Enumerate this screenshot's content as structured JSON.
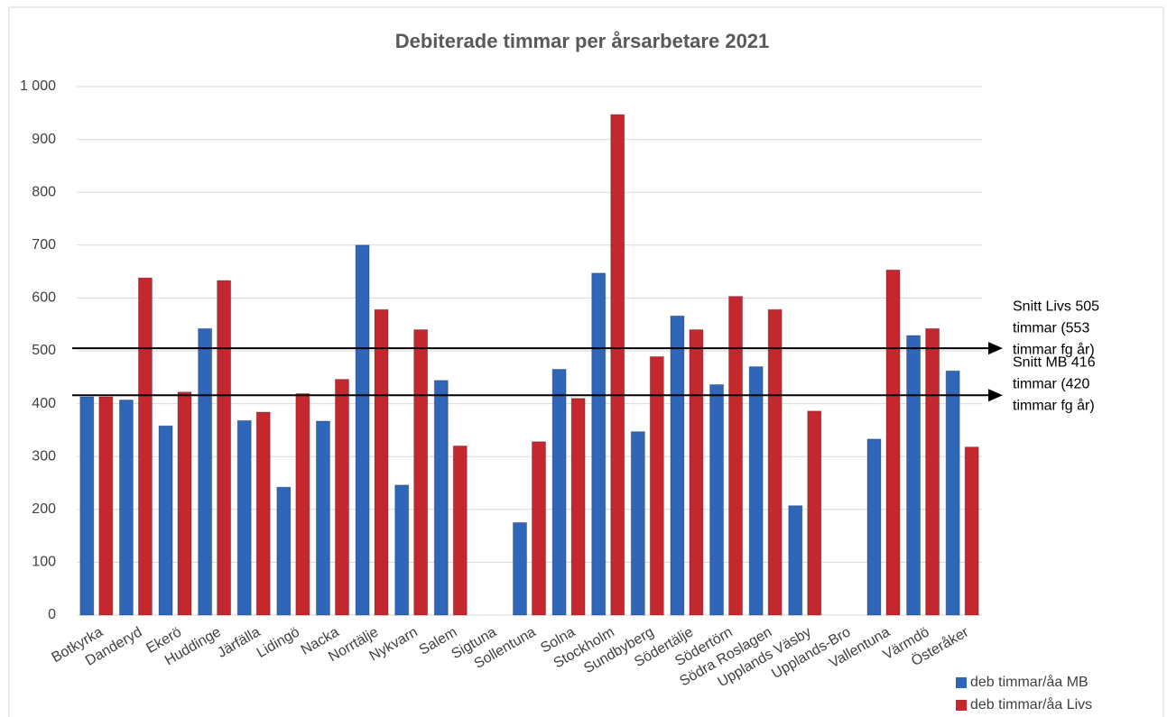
{
  "chart_data": {
    "type": "bar",
    "title": "Debiterade timmar per årsarbetare 2021",
    "categories": [
      "Botkyrka",
      "Danderyd",
      "Ekerö",
      "Huddinge",
      "Järfälla",
      "Lidingö",
      "Nacka",
      "Norrtälje",
      "Nykvarn",
      "Salem",
      "Sigtuna",
      "Sollentuna",
      "Solna",
      "Stockholm",
      "Sundbyberg",
      "Södertälje",
      "Södertörn",
      "Södra Roslagen",
      "Upplands Väsby",
      "Upplands-Bro",
      "Vallentuna",
      "Värmdö",
      "Österåker"
    ],
    "series": [
      {
        "name": "deb timmar/åa MB",
        "color": "#2f66b8",
        "values": [
          413,
          407,
          358,
          542,
          368,
          242,
          367,
          700,
          246,
          444,
          null,
          175,
          465,
          647,
          347,
          566,
          436,
          470,
          207,
          null,
          333,
          529,
          462
        ]
      },
      {
        "name": "deb timmar/åa Livs",
        "color": "#c4282e",
        "values": [
          413,
          638,
          422,
          633,
          384,
          419,
          446,
          578,
          540,
          320,
          null,
          328,
          410,
          947,
          489,
          540,
          603,
          578,
          386,
          null,
          653,
          542,
          318
        ]
      }
    ],
    "ylim": [
      0,
      1000
    ],
    "yticks": [
      0,
      100,
      200,
      300,
      400,
      500,
      600,
      700,
      800,
      900,
      {
        "value": 1000,
        "label": "1 000"
      }
    ],
    "grid": true,
    "legend": "bottom-right",
    "annotations": [
      {
        "value": 505,
        "lines": [
          "Snitt Livs 505",
          "timmar (553",
          "timmar fg år)"
        ]
      },
      {
        "value": 416,
        "lines": [
          "Snitt MB 416",
          "timmar (420",
          "timmar fg år)"
        ]
      }
    ]
  }
}
